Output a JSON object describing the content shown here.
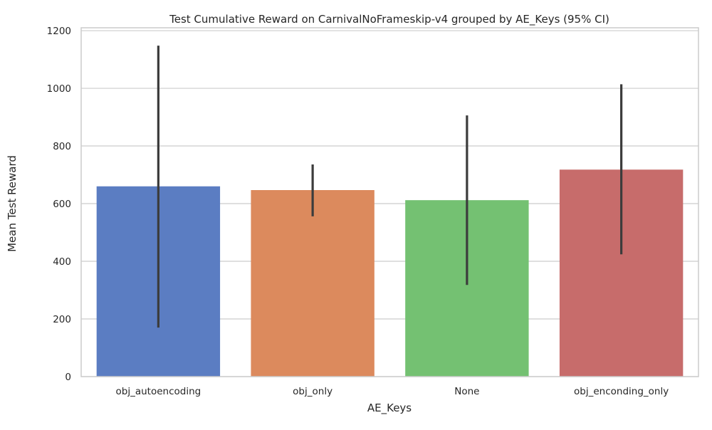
{
  "chart_data": {
    "type": "bar",
    "title": "Test Cumulative Reward on CarnivalNoFrameskip-v4 grouped by AE_Keys (95% CI)",
    "xlabel": "AE_Keys",
    "ylabel": "Mean Test Reward",
    "categories": [
      "obj_autoencoding",
      "obj_only",
      "None",
      "obj_enconding_only"
    ],
    "values": [
      660,
      647,
      612,
      718
    ],
    "ci_low": [
      170,
      556,
      318,
      424
    ],
    "ci_high": [
      1148,
      736,
      906,
      1014
    ],
    "colors": [
      "#5b7dc2",
      "#dc8a5d",
      "#74c172",
      "#c76c6b"
    ],
    "error_bar_color": "#3c3c3c",
    "ylim": [
      0,
      1210
    ],
    "yticks": [
      0,
      200,
      400,
      600,
      800,
      1000,
      1200
    ],
    "grid": "horizontal",
    "legend": "none"
  }
}
